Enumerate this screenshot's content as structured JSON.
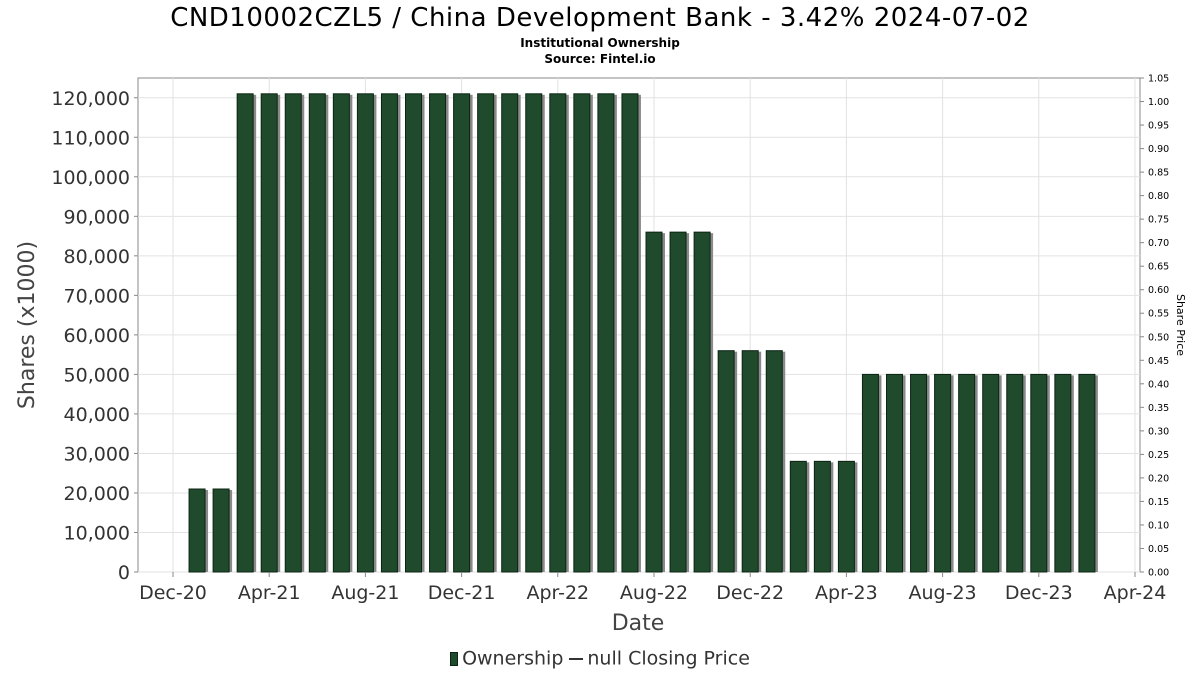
{
  "header": {
    "title": "CND10002CZL5 / China Development Bank - 3.42% 2024-07-02",
    "subtitle": "Institutional Ownership",
    "source": "Source: Fintel.io"
  },
  "legend": {
    "ownership_label": "Ownership",
    "price_label": "null Closing Price"
  },
  "colors": {
    "bar_fill": "#1f4a2b",
    "bar_stroke": "#0c2414",
    "bar_shadow": "#8a8a8a",
    "grid": "#e2e2e2",
    "plot_border": "#888888"
  },
  "chart_data": {
    "type": "bar",
    "title": "CND10002CZL5 / China Development Bank - 3.42% 2024-07-02",
    "xlabel": "Date",
    "ylabel": "Shares (x1000)",
    "y2label": "Share Price",
    "ylim": [
      0,
      125000
    ],
    "y2lim": [
      0,
      1.05
    ],
    "grid": true,
    "legend_position": "bottom",
    "x_ticks": [
      "Dec-20",
      "Apr-21",
      "Aug-21",
      "Dec-21",
      "Apr-22",
      "Aug-22",
      "Dec-22",
      "Apr-23",
      "Aug-23",
      "Dec-23",
      "Apr-24"
    ],
    "y_ticks": [
      0,
      10000,
      20000,
      30000,
      40000,
      50000,
      60000,
      70000,
      80000,
      90000,
      100000,
      110000,
      120000
    ],
    "y_tick_labels": [
      "0",
      "10,000",
      "20,000",
      "30,000",
      "40,000",
      "50,000",
      "60,000",
      "70,000",
      "80,000",
      "90,000",
      "100,000",
      "110,000",
      "120,000"
    ],
    "y2_tick_labels": [
      "0.00",
      "0.05",
      "0.10",
      "0.15",
      "0.20",
      "0.25",
      "0.30",
      "0.35",
      "0.40",
      "0.45",
      "0.50",
      "0.55",
      "0.60",
      "0.65",
      "0.70",
      "0.75",
      "0.80",
      "0.85",
      "0.90",
      "0.95",
      "1.00",
      "1.05"
    ],
    "series": [
      {
        "name": "Ownership",
        "x": [
          "2021-01",
          "2021-02",
          "2021-03",
          "2021-04",
          "2021-05",
          "2021-06",
          "2021-07",
          "2021-08",
          "2021-09",
          "2021-10",
          "2021-11",
          "2021-12",
          "2022-01",
          "2022-02",
          "2022-03",
          "2022-04",
          "2022-05",
          "2022-06",
          "2022-07",
          "2022-08",
          "2022-09",
          "2022-10",
          "2022-11",
          "2022-12",
          "2023-01",
          "2023-02",
          "2023-03",
          "2023-04",
          "2023-05",
          "2023-06",
          "2023-07",
          "2023-08",
          "2023-09",
          "2023-10",
          "2023-11",
          "2023-12",
          "2024-01",
          "2024-02"
        ],
        "values": [
          21000,
          21000,
          121000,
          121000,
          121000,
          121000,
          121000,
          121000,
          121000,
          121000,
          121000,
          121000,
          121000,
          121000,
          121000,
          121000,
          121000,
          121000,
          121000,
          86000,
          86000,
          86000,
          56000,
          56000,
          56000,
          28000,
          28000,
          28000,
          50000,
          50000,
          50000,
          50000,
          50000,
          50000,
          50000,
          50000,
          50000,
          50000
        ]
      }
    ]
  }
}
